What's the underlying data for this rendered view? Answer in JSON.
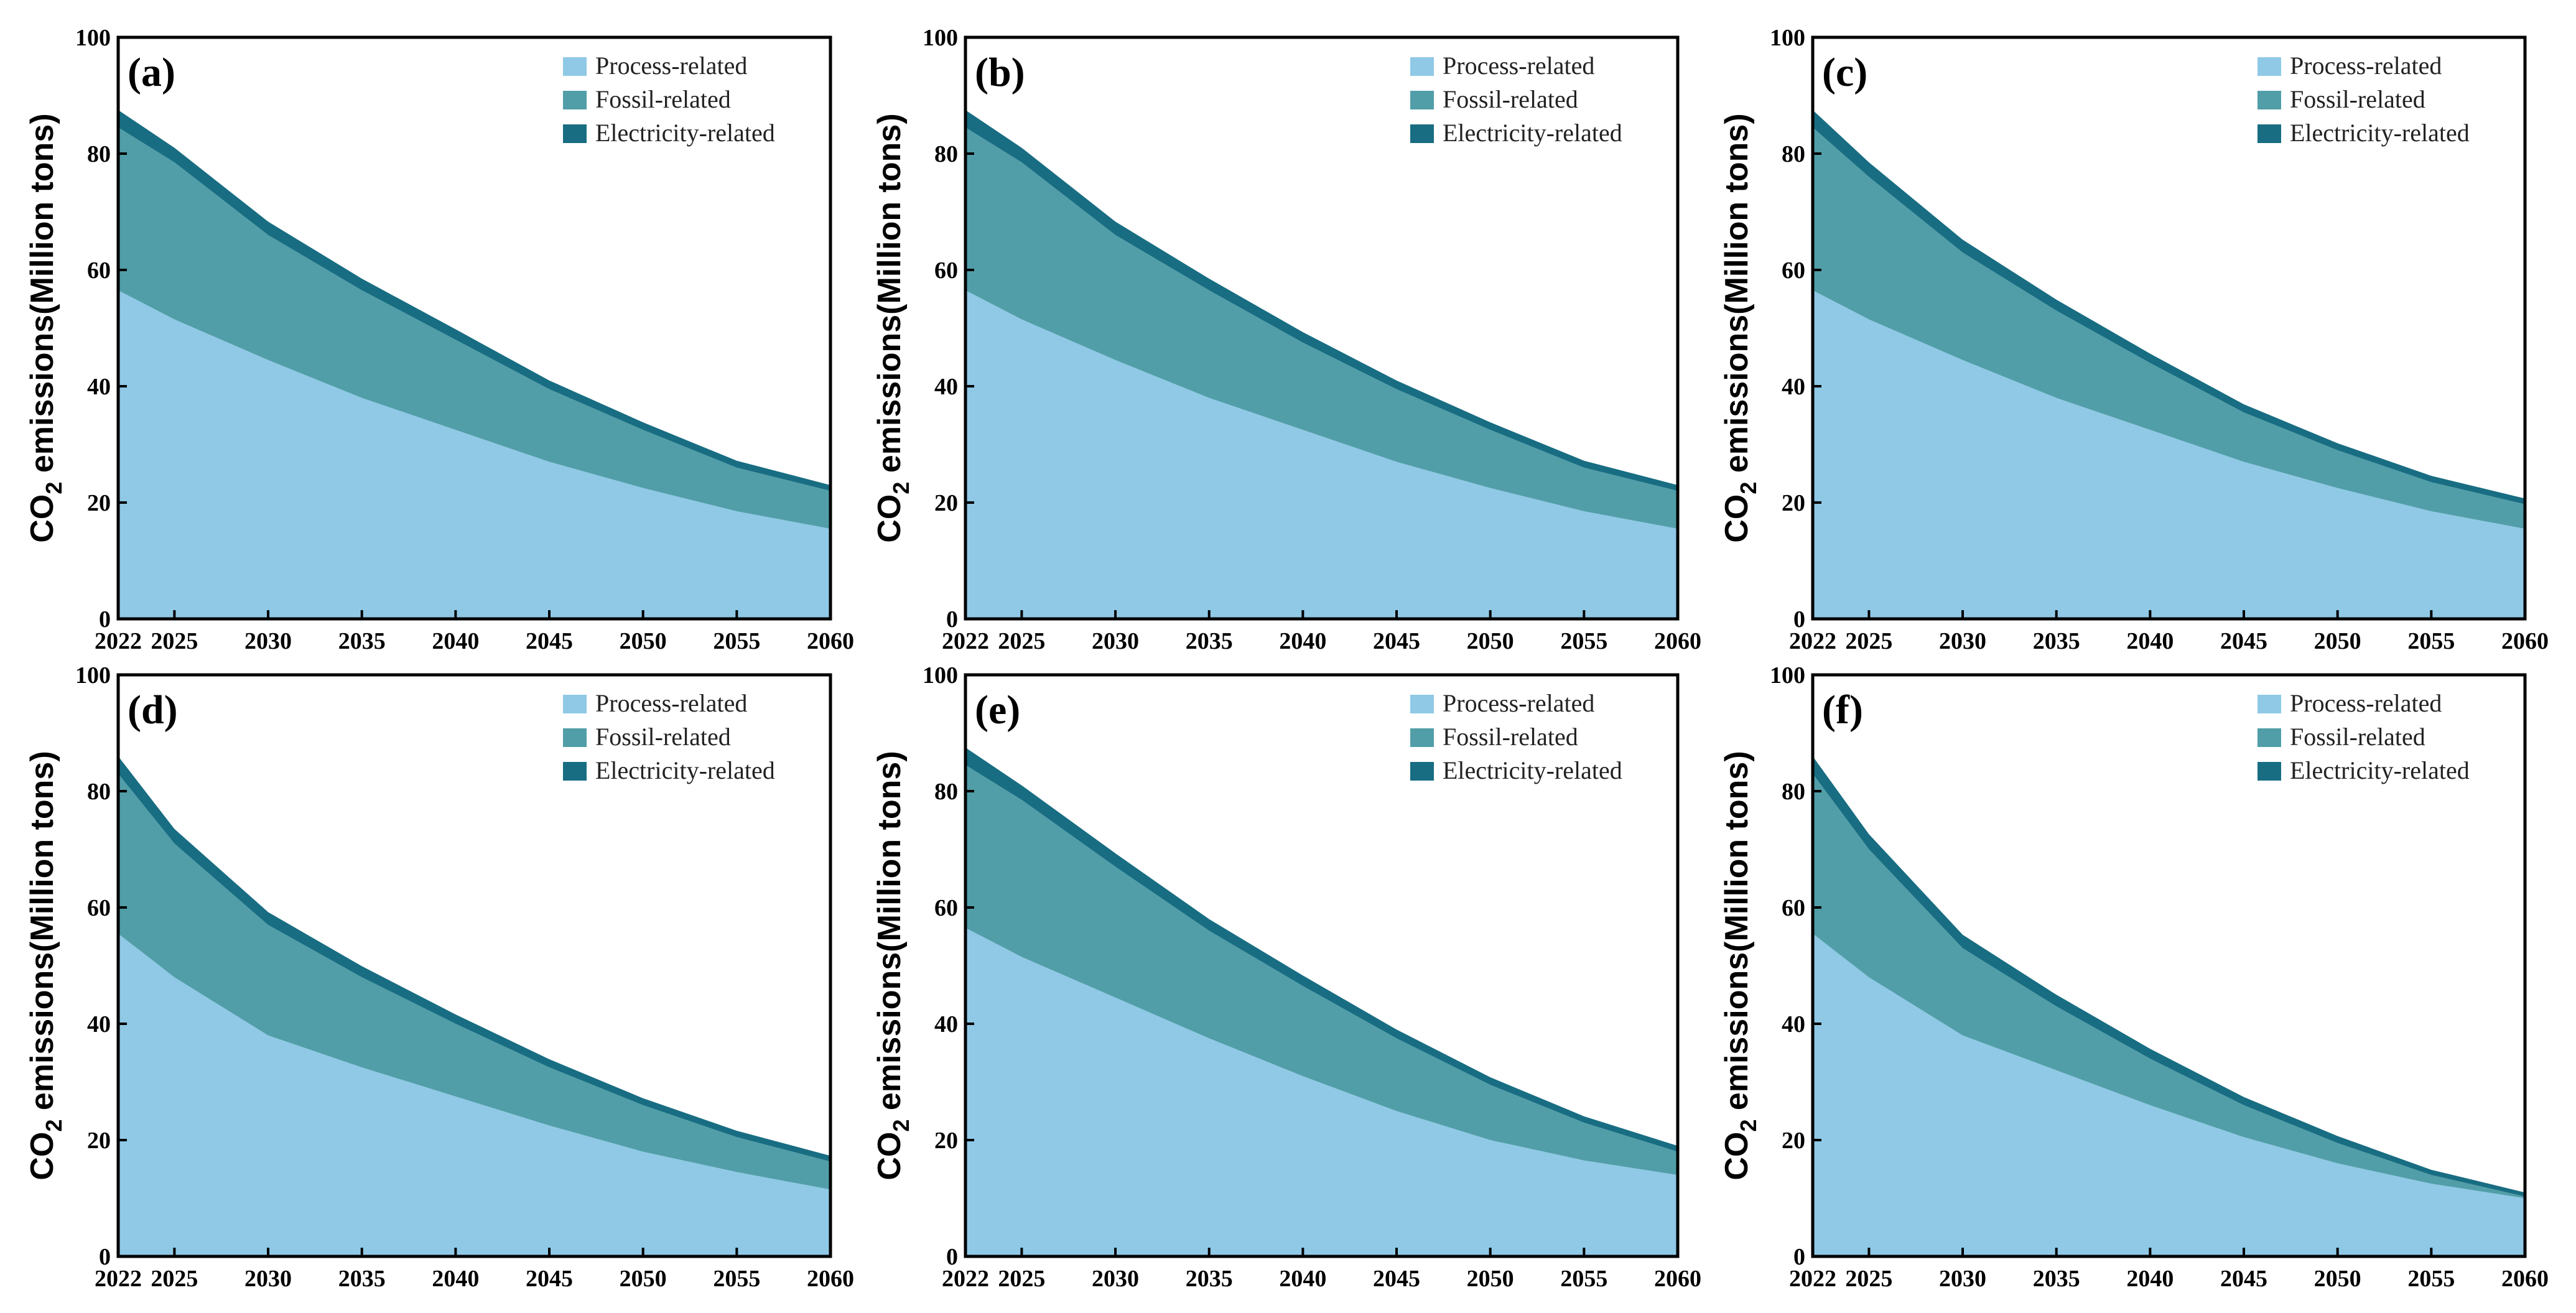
{
  "colors": {
    "process": "#8fc9e6",
    "fossil": "#519ea8",
    "electricity": "#186d82"
  },
  "chart_data": [
    {
      "type": "area",
      "panel_label": "(a)",
      "ylabel_main": "CO",
      "ylabel_sub": "2",
      "ylabel_rest": " emissions(Million tons)",
      "ylim": [
        0,
        100
      ],
      "yticks": [
        0,
        20,
        40,
        60,
        80,
        100
      ],
      "xlim": [
        2022,
        2060
      ],
      "xticks": [
        2022,
        2025,
        2030,
        2035,
        2040,
        2045,
        2050,
        2055,
        2060
      ],
      "legend": [
        "Process-related",
        "Fossil-related",
        "Electricity-related"
      ],
      "legend_position": "top-right",
      "x": [
        2022,
        2025,
        2030,
        2035,
        2040,
        2045,
        2050,
        2055,
        2060
      ],
      "series": [
        {
          "name": "Process-related",
          "values": [
            56.5,
            51.5,
            44.5,
            38.0,
            32.5,
            27.0,
            22.5,
            18.5,
            15.5
          ]
        },
        {
          "name": "Fossil-related",
          "values": [
            28.0,
            27.0,
            21.5,
            18.5,
            15.5,
            12.5,
            10.0,
            7.5,
            6.5
          ]
        },
        {
          "name": "Electricity-related",
          "values": [
            3.0,
            2.5,
            2.3,
            2.0,
            1.8,
            1.5,
            1.3,
            1.2,
            1.0
          ]
        }
      ]
    },
    {
      "type": "area",
      "panel_label": "(b)",
      "ylabel_main": "CO",
      "ylabel_sub": "2",
      "ylabel_rest": " emissions(Million tons)",
      "ylim": [
        0,
        100
      ],
      "yticks": [
        0,
        20,
        40,
        60,
        80,
        100
      ],
      "xlim": [
        2022,
        2060
      ],
      "xticks": [
        2022,
        2025,
        2030,
        2035,
        2040,
        2045,
        2050,
        2055,
        2060
      ],
      "legend": [
        "Process-related",
        "Fossil-related",
        "Electricity-related"
      ],
      "legend_position": "top-right",
      "x": [
        2022,
        2025,
        2030,
        2035,
        2040,
        2045,
        2050,
        2055,
        2060
      ],
      "series": [
        {
          "name": "Process-related",
          "values": [
            56.5,
            51.5,
            44.5,
            38.0,
            32.5,
            27.0,
            22.5,
            18.5,
            15.5
          ]
        },
        {
          "name": "Fossil-related",
          "values": [
            28.0,
            27.0,
            21.5,
            18.5,
            15.0,
            12.5,
            10.0,
            7.5,
            6.5
          ]
        },
        {
          "name": "Electricity-related",
          "values": [
            3.0,
            2.5,
            2.3,
            2.0,
            1.8,
            1.5,
            1.3,
            1.2,
            1.0
          ]
        }
      ]
    },
    {
      "type": "area",
      "panel_label": "(c)",
      "ylabel_main": "CO",
      "ylabel_sub": "2",
      "ylabel_rest": " emissions(Million tons)",
      "ylim": [
        0,
        100
      ],
      "yticks": [
        0,
        20,
        40,
        60,
        80,
        100
      ],
      "xlim": [
        2022,
        2060
      ],
      "xticks": [
        2022,
        2025,
        2030,
        2035,
        2040,
        2045,
        2050,
        2055,
        2060
      ],
      "legend": [
        "Process-related",
        "Fossil-related",
        "Electricity-related"
      ],
      "legend_position": "top-right",
      "x": [
        2022,
        2025,
        2030,
        2035,
        2040,
        2045,
        2050,
        2055,
        2060
      ],
      "series": [
        {
          "name": "Process-related",
          "values": [
            56.5,
            51.5,
            44.5,
            38.0,
            32.5,
            27.0,
            22.5,
            18.5,
            15.5
          ]
        },
        {
          "name": "Fossil-related",
          "values": [
            28.0,
            24.5,
            18.5,
            15.0,
            11.5,
            8.5,
            6.5,
            5.0,
            4.2
          ]
        },
        {
          "name": "Electricity-related",
          "values": [
            3.0,
            2.5,
            2.2,
            1.9,
            1.6,
            1.4,
            1.2,
            1.1,
            1.0
          ]
        }
      ]
    },
    {
      "type": "area",
      "panel_label": "(d)",
      "ylabel_main": "CO",
      "ylabel_sub": "2",
      "ylabel_rest": " emissions(Million tons)",
      "ylim": [
        0,
        100
      ],
      "yticks": [
        0,
        20,
        40,
        60,
        80,
        100
      ],
      "xlim": [
        2022,
        2060
      ],
      "xticks": [
        2022,
        2025,
        2030,
        2035,
        2040,
        2045,
        2050,
        2055,
        2060
      ],
      "legend": [
        "Process-related",
        "Fossil-related",
        "Electricity-related"
      ],
      "legend_position": "top-right",
      "x": [
        2022,
        2025,
        2030,
        2035,
        2040,
        2045,
        2050,
        2055,
        2060
      ],
      "series": [
        {
          "name": "Process-related",
          "values": [
            55.5,
            48.0,
            38.0,
            32.5,
            27.5,
            22.5,
            18.0,
            14.5,
            11.5
          ]
        },
        {
          "name": "Fossil-related",
          "values": [
            27.5,
            23.0,
            19.0,
            15.5,
            12.5,
            10.0,
            8.0,
            6.0,
            4.8
          ]
        },
        {
          "name": "Electricity-related",
          "values": [
            3.0,
            2.5,
            2.2,
            1.9,
            1.6,
            1.4,
            1.2,
            1.1,
            1.0
          ]
        }
      ]
    },
    {
      "type": "area",
      "panel_label": "(e)",
      "ylabel_main": "CO",
      "ylabel_sub": "2",
      "ylabel_rest": " emissions(Million tons)",
      "ylim": [
        0,
        100
      ],
      "yticks": [
        0,
        20,
        40,
        60,
        80,
        100
      ],
      "xlim": [
        2022,
        2060
      ],
      "xticks": [
        2022,
        2025,
        2030,
        2035,
        2040,
        2045,
        2050,
        2055,
        2060
      ],
      "legend": [
        "Process-related",
        "Fossil-related",
        "Electricity-related"
      ],
      "legend_position": "top-right",
      "x": [
        2022,
        2025,
        2030,
        2035,
        2040,
        2045,
        2050,
        2055,
        2060
      ],
      "series": [
        {
          "name": "Process-related",
          "values": [
            56.5,
            51.5,
            44.5,
            37.5,
            31.0,
            25.0,
            20.0,
            16.5,
            14.0
          ]
        },
        {
          "name": "Fossil-related",
          "values": [
            28.0,
            27.0,
            22.5,
            18.5,
            15.5,
            12.5,
            9.5,
            6.5,
            4.0
          ]
        },
        {
          "name": "Electricity-related",
          "values": [
            3.0,
            2.5,
            2.3,
            2.0,
            1.8,
            1.5,
            1.3,
            1.1,
            1.0
          ]
        }
      ]
    },
    {
      "type": "area",
      "panel_label": "(f)",
      "ylabel_main": "CO",
      "ylabel_sub": "2",
      "ylabel_rest": " emissions(Million tons)",
      "ylim": [
        0,
        100
      ],
      "yticks": [
        0,
        20,
        40,
        60,
        80,
        100
      ],
      "xlim": [
        2022,
        2060
      ],
      "xticks": [
        2022,
        2025,
        2030,
        2035,
        2040,
        2045,
        2050,
        2055,
        2060
      ],
      "legend": [
        "Process-related",
        "Fossil-related",
        "Electricity-related"
      ],
      "legend_position": "top-right",
      "x": [
        2022,
        2025,
        2030,
        2035,
        2040,
        2045,
        2050,
        2055,
        2060
      ],
      "series": [
        {
          "name": "Process-related",
          "values": [
            55.5,
            48.0,
            38.0,
            32.0,
            26.0,
            20.5,
            16.0,
            12.5,
            10.0
          ]
        },
        {
          "name": "Fossil-related",
          "values": [
            27.5,
            22.0,
            15.0,
            11.0,
            8.0,
            5.5,
            3.5,
            1.5,
            0.3
          ]
        },
        {
          "name": "Electricity-related",
          "values": [
            3.0,
            2.6,
            2.3,
            2.0,
            1.7,
            1.4,
            1.2,
            0.9,
            0.7
          ]
        }
      ]
    }
  ]
}
